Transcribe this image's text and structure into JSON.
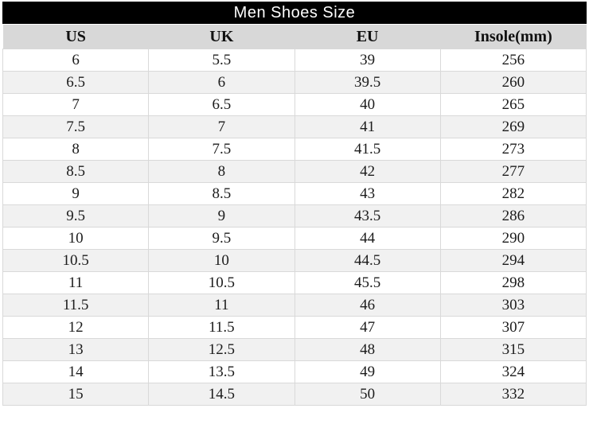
{
  "title": "Men Shoes Size",
  "chart_data": {
    "type": "table",
    "title": "Men Shoes Size",
    "columns": [
      "US",
      "UK",
      "EU",
      "Insole(mm)"
    ],
    "column_keys": [
      "us",
      "uk",
      "eu",
      "insole"
    ],
    "rows": [
      [
        "6",
        "5.5",
        "39",
        "256"
      ],
      [
        "6.5",
        "6",
        "39.5",
        "260"
      ],
      [
        "7",
        "6.5",
        "40",
        "265"
      ],
      [
        "7.5",
        "7",
        "41",
        "269"
      ],
      [
        "8",
        "7.5",
        "41.5",
        "273"
      ],
      [
        "8.5",
        "8",
        "42",
        "277"
      ],
      [
        "9",
        "8.5",
        "43",
        "282"
      ],
      [
        "9.5",
        "9",
        "43.5",
        "286"
      ],
      [
        "10",
        "9.5",
        "44",
        "290"
      ],
      [
        "10.5",
        "10",
        "44.5",
        "294"
      ],
      [
        "11",
        "10.5",
        "45.5",
        "298"
      ],
      [
        "11.5",
        "11",
        "46",
        "303"
      ],
      [
        "12",
        "11.5",
        "47",
        "307"
      ],
      [
        "13",
        "12.5",
        "48",
        "315"
      ],
      [
        "14",
        "13.5",
        "49",
        "324"
      ],
      [
        "15",
        "14.5",
        "50",
        "332"
      ]
    ]
  },
  "colors": {
    "title_bg": "#000000",
    "title_text": "#ffffff",
    "header_bg": "#d8d8d8",
    "row_bg": "#ffffff",
    "row_alt_bg": "#f1f1f1",
    "border": "#d9d9d9",
    "text": "#1c1c1c"
  }
}
